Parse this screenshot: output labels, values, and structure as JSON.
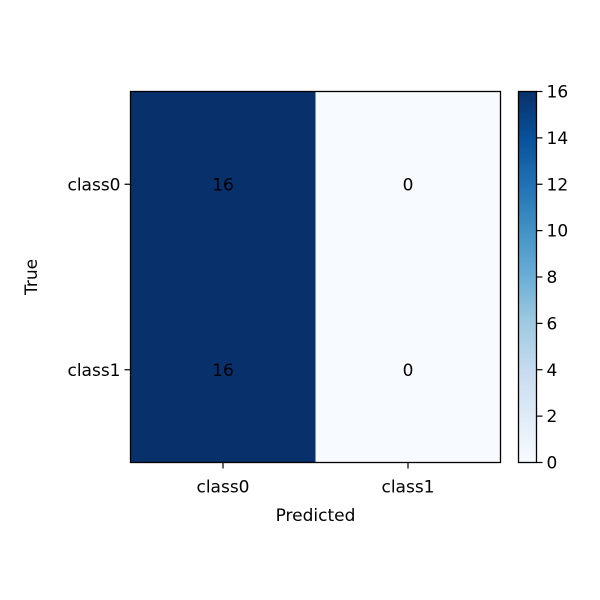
{
  "chart_data": {
    "type": "heatmap",
    "x_categories": [
      "class0",
      "class1"
    ],
    "y_categories": [
      "class0",
      "class1"
    ],
    "matrix": [
      [
        16,
        0
      ],
      [
        16,
        0
      ]
    ],
    "xlabel": "Predicted",
    "ylabel": "True",
    "colormap": "Blues",
    "colormap_low": "#f7fbff",
    "colormap_high": "#08306b",
    "colorbar": {
      "range": [
        0,
        16
      ],
      "ticks": [
        0,
        2,
        4,
        6,
        8,
        10,
        12,
        14,
        16
      ]
    }
  }
}
